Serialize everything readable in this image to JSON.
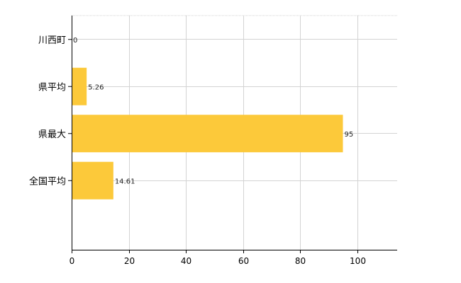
{
  "chart_data": {
    "type": "bar",
    "orientation": "horizontal",
    "categories": [
      "川西町",
      "県平均",
      "県最大",
      "全国平均"
    ],
    "values": [
      0,
      5.26,
      95,
      14.61
    ],
    "data_labels": [
      "0",
      "5.26",
      "95",
      "14.61"
    ],
    "title": "",
    "xlabel": "",
    "ylabel": "",
    "xlim": [
      0,
      114
    ],
    "xticks": [
      0,
      20,
      40,
      60,
      80,
      100
    ],
    "xtick_labels": [
      "0",
      "20",
      "40",
      "60",
      "80",
      "100"
    ],
    "grid": true,
    "bar_color": "#fcc93a",
    "grid_color": "#d3d3d3"
  }
}
